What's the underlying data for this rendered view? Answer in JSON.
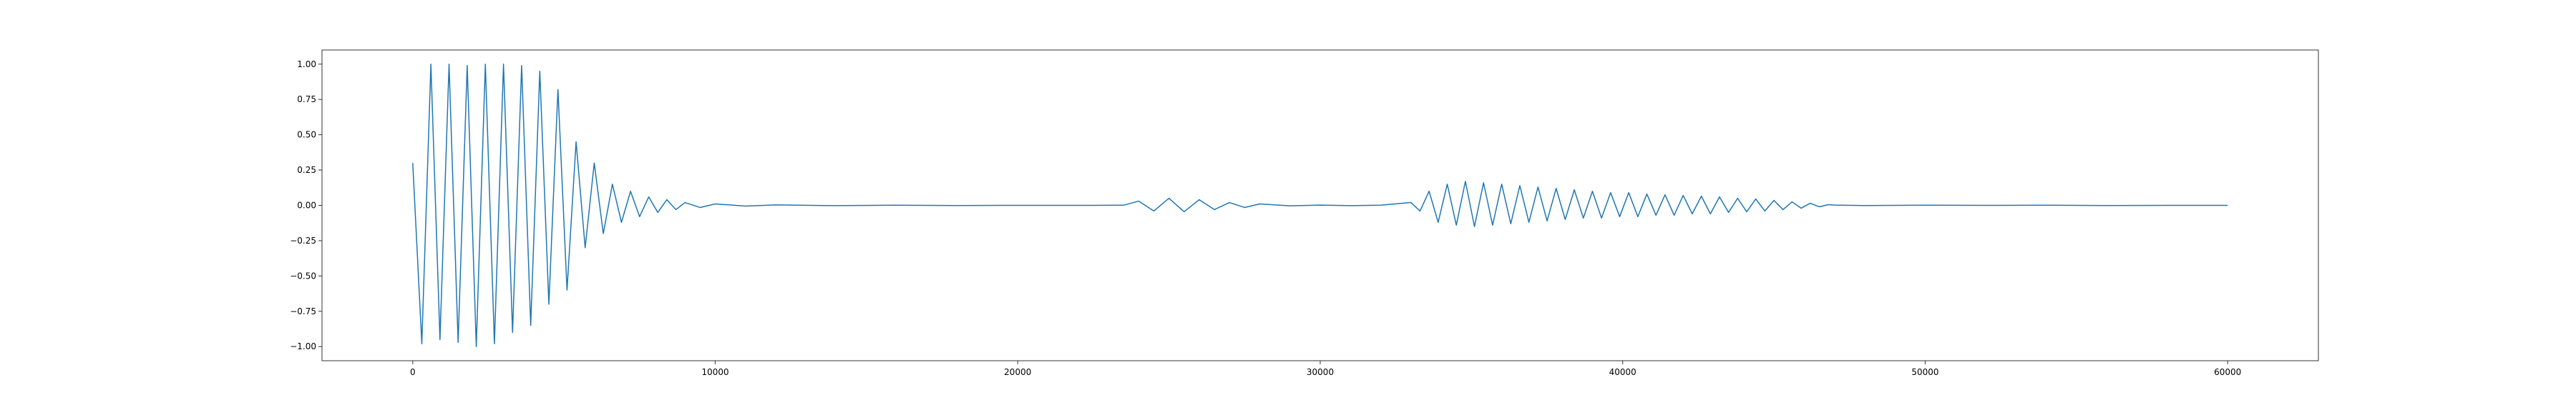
{
  "chart_data": {
    "type": "line",
    "title": "",
    "xlabel": "",
    "ylabel": "",
    "xlim": [
      -3000,
      63000
    ],
    "ylim": [
      -1.1,
      1.1
    ],
    "grid": false,
    "legend": "none",
    "line_color": "#1f77b4",
    "x_ticks": [
      {
        "value": 0,
        "label": "0"
      },
      {
        "value": 10000,
        "label": "10000"
      },
      {
        "value": 20000,
        "label": "20000"
      },
      {
        "value": 30000,
        "label": "30000"
      },
      {
        "value": 40000,
        "label": "40000"
      },
      {
        "value": 50000,
        "label": "50000"
      },
      {
        "value": 60000,
        "label": "60000"
      }
    ],
    "y_ticks": [
      {
        "value": 1.0,
        "label": "1.00"
      },
      {
        "value": 0.75,
        "label": "0.75"
      },
      {
        "value": 0.5,
        "label": "0.50"
      },
      {
        "value": 0.25,
        "label": "0.25"
      },
      {
        "value": 0.0,
        "label": "0.00"
      },
      {
        "value": -0.25,
        "label": "−0.25"
      },
      {
        "value": -0.5,
        "label": "−0.50"
      },
      {
        "value": -0.75,
        "label": "−0.75"
      },
      {
        "value": -1.0,
        "label": "−1.00"
      }
    ],
    "series": [
      {
        "x": [
          0,
          300,
          600,
          900,
          1200,
          1500,
          1800,
          2100,
          2400,
          2700,
          3000,
          3300,
          3600,
          3900,
          4200,
          4500,
          4800,
          5100,
          5400,
          5700,
          6000,
          6300,
          6600,
          6900,
          7200,
          7500,
          7800,
          8100,
          8400,
          8700,
          9000,
          9500,
          10000,
          11000,
          12000,
          14000,
          16000,
          18000,
          20000,
          22000,
          23500,
          24000,
          24500,
          25000,
          25500,
          26000,
          26500,
          27000,
          27500,
          28000,
          29000,
          30000,
          31000,
          32000,
          33000,
          33300,
          33600,
          33900,
          34200,
          34500,
          34800,
          35100,
          35400,
          35700,
          36000,
          36300,
          36600,
          36900,
          37200,
          37500,
          37800,
          38100,
          38400,
          38700,
          39000,
          39300,
          39600,
          39900,
          40200,
          40500,
          40800,
          41100,
          41400,
          41700,
          42000,
          42300,
          42600,
          42900,
          43200,
          43500,
          43800,
          44100,
          44400,
          44700,
          45000,
          45300,
          45600,
          45900,
          46200,
          46500,
          46800,
          47000,
          48000,
          50000,
          52000,
          54000,
          56000,
          58000,
          60000
        ],
        "y": [
          0.3,
          -0.98,
          1.0,
          -0.95,
          1.0,
          -0.97,
          0.99,
          -1.0,
          1.0,
          -0.98,
          1.0,
          -0.9,
          0.99,
          -0.85,
          0.95,
          -0.7,
          0.82,
          -0.6,
          0.45,
          -0.3,
          0.3,
          -0.2,
          0.15,
          -0.12,
          0.1,
          -0.08,
          0.06,
          -0.05,
          0.04,
          -0.03,
          0.02,
          -0.015,
          0.01,
          -0.005,
          0.003,
          -0.002,
          0.001,
          -0.001,
          0.0,
          0.0,
          0.001,
          0.03,
          -0.04,
          0.05,
          -0.045,
          0.04,
          -0.03,
          0.02,
          -0.015,
          0.01,
          -0.003,
          0.002,
          -0.002,
          0.001,
          0.02,
          -0.04,
          0.1,
          -0.12,
          0.15,
          -0.14,
          0.17,
          -0.15,
          0.16,
          -0.14,
          0.15,
          -0.13,
          0.14,
          -0.12,
          0.13,
          -0.11,
          0.12,
          -0.1,
          0.11,
          -0.09,
          0.1,
          -0.09,
          0.09,
          -0.08,
          0.09,
          -0.08,
          0.08,
          -0.07,
          0.075,
          -0.07,
          0.07,
          -0.06,
          0.065,
          -0.06,
          0.06,
          -0.05,
          0.05,
          -0.045,
          0.045,
          -0.04,
          0.035,
          -0.03,
          0.025,
          -0.02,
          0.015,
          -0.01,
          0.005,
          0.002,
          -0.001,
          0.001,
          0.0,
          0.001,
          -0.001,
          0.0,
          0.0
        ]
      }
    ]
  }
}
